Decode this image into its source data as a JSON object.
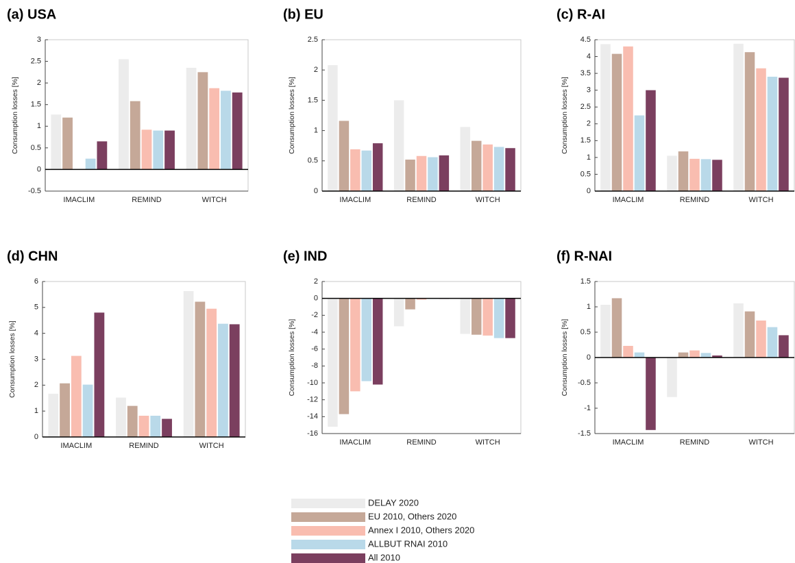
{
  "chart_data": [
    {
      "type": "bar",
      "title": "(a) USA",
      "y_label": "Consumption losses [%]",
      "categories": [
        "IMACLIM",
        "REMIND",
        "WITCH"
      ],
      "series": [
        {
          "values": [
            1.27,
            2.55,
            2.35
          ]
        },
        {
          "values": [
            1.2,
            1.58,
            2.25
          ]
        },
        {
          "values": [
            0,
            0.92,
            1.88
          ]
        },
        {
          "values": [
            0.25,
            0.9,
            1.82
          ]
        },
        {
          "values": [
            0.65,
            0.9,
            1.78
          ]
        }
      ],
      "ylim": [
        -0.5,
        3
      ],
      "yticks": [
        -0.5,
        0,
        0.5,
        1,
        1.5,
        2,
        2.5,
        3
      ]
    },
    {
      "type": "bar",
      "title": "(b) EU",
      "y_label": "Consumption losses [%]",
      "categories": [
        "IMACLIM",
        "REMIND",
        "WITCH"
      ],
      "series": [
        {
          "values": [
            2.08,
            1.5,
            1.06
          ]
        },
        {
          "values": [
            1.16,
            0.52,
            0.83
          ]
        },
        {
          "values": [
            0.69,
            0.58,
            0.77
          ]
        },
        {
          "values": [
            0.67,
            0.56,
            0.73
          ]
        },
        {
          "values": [
            0.79,
            0.59,
            0.71
          ]
        }
      ],
      "ylim": [
        0,
        2.5
      ],
      "yticks": [
        0,
        0.5,
        1,
        1.5,
        2,
        2.5
      ]
    },
    {
      "type": "bar",
      "title": "(c) R-AI",
      "y_label": "Consumption losses [%]",
      "categories": [
        "IMACLIM",
        "REMIND",
        "WITCH"
      ],
      "series": [
        {
          "values": [
            4.37,
            1.05,
            4.38
          ]
        },
        {
          "values": [
            4.08,
            1.18,
            4.13
          ]
        },
        {
          "values": [
            4.3,
            0.96,
            3.65
          ]
        },
        {
          "values": [
            2.25,
            0.95,
            3.4
          ]
        },
        {
          "values": [
            3.0,
            0.93,
            3.37
          ]
        }
      ],
      "ylim": [
        0,
        4.5
      ],
      "yticks": [
        0,
        0.5,
        1,
        1.5,
        2,
        2.5,
        3,
        3.5,
        4,
        4.5
      ]
    },
    {
      "type": "bar",
      "title": "(d) CHN",
      "y_label": "Consumption losses [%]",
      "categories": [
        "IMACLIM",
        "REMIND",
        "WITCH"
      ],
      "series": [
        {
          "values": [
            1.67,
            1.52,
            5.63
          ]
        },
        {
          "values": [
            2.07,
            1.2,
            5.22
          ]
        },
        {
          "values": [
            3.13,
            0.82,
            4.95
          ]
        },
        {
          "values": [
            2.02,
            0.82,
            4.37
          ]
        },
        {
          "values": [
            4.8,
            0.7,
            4.35
          ]
        }
      ],
      "ylim": [
        0,
        6
      ],
      "yticks": [
        0,
        1,
        2,
        3,
        4,
        5,
        6
      ]
    },
    {
      "type": "bar",
      "title": "(e) IND",
      "y_label": "Consumption losses [%]",
      "categories": [
        "IMACLIM",
        "REMIND",
        "WITCH"
      ],
      "series": [
        {
          "values": [
            -15.2,
            -3.3,
            -4.2
          ]
        },
        {
          "values": [
            -13.7,
            -1.3,
            -4.3
          ]
        },
        {
          "values": [
            -11,
            -0.15,
            -4.4
          ]
        },
        {
          "values": [
            -9.8,
            -0.05,
            -4.7
          ]
        },
        {
          "values": [
            -10.2,
            -0.05,
            -4.7
          ]
        }
      ],
      "ylim": [
        -16,
        2
      ],
      "yticks": [
        -16,
        -14,
        -12,
        -10,
        -8,
        -6,
        -4,
        -2,
        0,
        2
      ]
    },
    {
      "type": "bar",
      "title": "(f) R-NAI",
      "y_label": "Consumption losses [%]",
      "categories": [
        "IMACLIM",
        "REMIND",
        "WITCH"
      ],
      "series": [
        {
          "values": [
            1.04,
            -0.78,
            1.07
          ]
        },
        {
          "values": [
            1.17,
            0.1,
            0.91
          ]
        },
        {
          "values": [
            0.23,
            0.14,
            0.73
          ]
        },
        {
          "values": [
            0.1,
            0.09,
            0.6
          ]
        },
        {
          "values": [
            -1.43,
            0.04,
            0.44
          ]
        }
      ],
      "ylim": [
        -1.5,
        1.5
      ],
      "yticks": [
        -1.5,
        -1,
        -0.5,
        0,
        0.5,
        1,
        1.5
      ]
    }
  ],
  "legend": [
    {
      "name": "DELAY 2020",
      "color": "#ececec"
    },
    {
      "name": "EU 2010, Others 2020",
      "color": "#c5a898"
    },
    {
      "name": "Annex I 2010, Others 2020",
      "color": "#f9bdb0"
    },
    {
      "name": "ALLBUT RNAI 2010",
      "color": "#b9d9e9"
    },
    {
      "name": "All 2010",
      "color": "#7b3f5f"
    }
  ]
}
